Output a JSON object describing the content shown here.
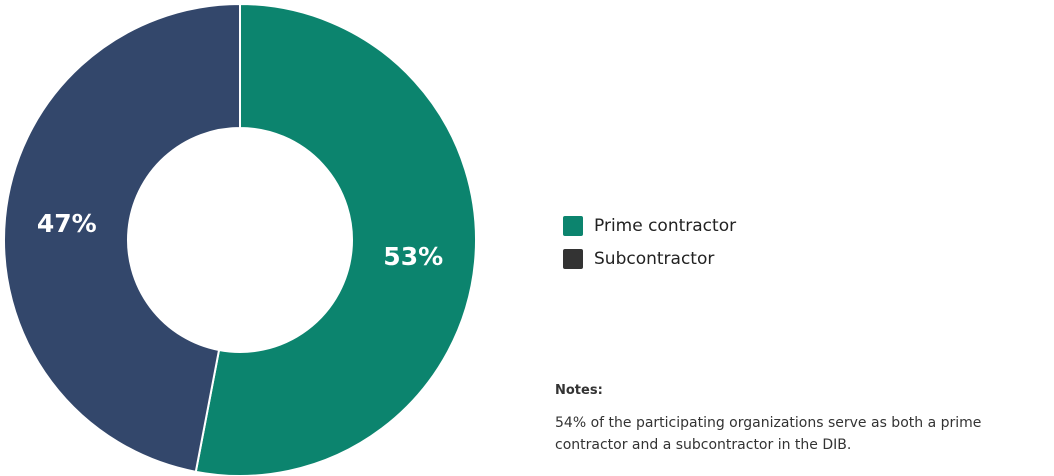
{
  "chart_data": {
    "type": "pie",
    "style": "donut",
    "slices": [
      {
        "name": "Prime contractor",
        "value": 53,
        "label": "53%",
        "color": "#0c846e"
      },
      {
        "name": "Subcontractor",
        "value": 47,
        "label": "47%",
        "color": "#33476b"
      }
    ],
    "legend": [
      {
        "label": "Prime contractor",
        "color": "#0c846e"
      },
      {
        "label": "Subcontractor",
        "color": "#333333"
      }
    ],
    "legend_position": "right"
  },
  "notes": {
    "title": "Notes:",
    "text": "54% of the participating organizations serve as both a prime contractor and a subcontractor in the DIB."
  }
}
